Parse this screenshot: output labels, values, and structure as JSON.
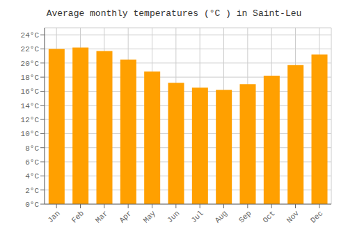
{
  "chart_data": {
    "type": "bar",
    "title": "Average monthly temperatures (°C ) in Saint-Leu",
    "categories": [
      "Jan",
      "Feb",
      "Mar",
      "Apr",
      "May",
      "Jun",
      "Jul",
      "Aug",
      "Sep",
      "Oct",
      "Nov",
      "Dec"
    ],
    "values": [
      22.0,
      22.2,
      21.7,
      20.5,
      18.8,
      17.2,
      16.5,
      16.2,
      17.0,
      18.2,
      19.7,
      21.2
    ],
    "color": "#FFA000",
    "ylim": [
      0,
      25
    ],
    "yticks": [
      {
        "value": 0,
        "label": "0°C"
      },
      {
        "value": 2,
        "label": "2°C"
      },
      {
        "value": 4,
        "label": "4°C"
      },
      {
        "value": 6,
        "label": "6°C"
      },
      {
        "value": 8,
        "label": "8°C"
      },
      {
        "value": 10,
        "label": "10°C"
      },
      {
        "value": 12,
        "label": "12°C"
      },
      {
        "value": 14,
        "label": "14°C"
      },
      {
        "value": 16,
        "label": "16°C"
      },
      {
        "value": 18,
        "label": "18°C"
      },
      {
        "value": 20,
        "label": "20°C"
      },
      {
        "value": 22,
        "label": "22°C"
      },
      {
        "value": 24,
        "label": "24°C"
      }
    ],
    "grid": true
  }
}
